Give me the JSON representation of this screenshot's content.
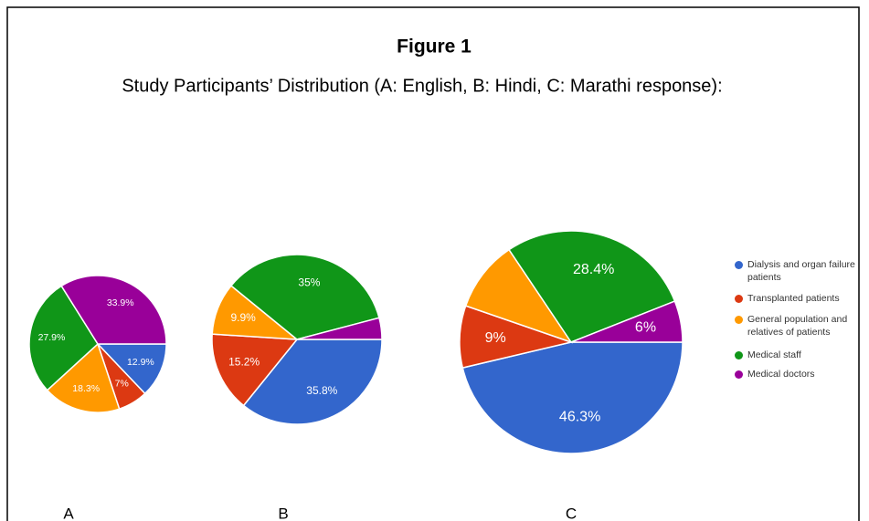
{
  "title": "Figure 1",
  "subtitle": "Study Participants’ Distribution (A: English, B: Hindi, C: Marathi response):",
  "categories": [
    "Dialysis and organ failure patients",
    "Transplanted patients",
    "General population and relatives of patients",
    "Medical staff",
    "Medical doctors"
  ],
  "colors": [
    "#3366cc",
    "#dc3912",
    "#ff9900",
    "#109618",
    "#990099"
  ],
  "chart_data": [
    {
      "type": "pie",
      "label": "A",
      "values": [
        12.9,
        7,
        18.3,
        27.9,
        33.9
      ],
      "value_labels": [
        "12.9%",
        "7%",
        "18.3%",
        "27.9%",
        "33.9%"
      ]
    },
    {
      "type": "pie",
      "label": "B",
      "values": [
        35.8,
        15.2,
        9.9,
        35,
        4.1
      ],
      "value_labels": [
        "35.8%",
        "15.2%",
        "9.9%",
        "35%",
        null
      ]
    },
    {
      "type": "pie",
      "label": "C",
      "values": [
        46.3,
        9,
        10.3,
        28.4,
        6
      ],
      "value_labels": [
        "46.3%",
        "9%",
        null,
        "28.4%",
        "6%"
      ]
    }
  ]
}
